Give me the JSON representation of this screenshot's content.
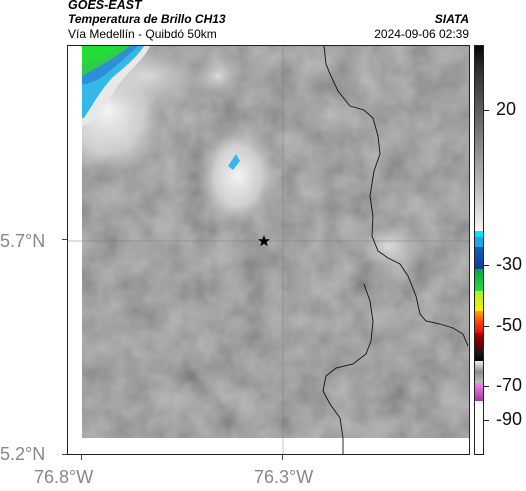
{
  "header": {
    "satellite": "GOES-EAST",
    "product": "Temperatura de Brillo CH13",
    "region": "Vía Medellín - Quibdó 50km",
    "organization": "SIATA",
    "datetime": "2024-09-06 02:39"
  },
  "axes": {
    "lat_ticks": [
      {
        "label": "5.7°N",
        "value": 5.7
      },
      {
        "label": "5.2°N",
        "value": 5.2
      }
    ],
    "lon_ticks": [
      {
        "label": "76.8°W",
        "value": -76.8
      },
      {
        "label": "76.3°W",
        "value": -76.3
      }
    ]
  },
  "map": {
    "marker": "star-marker"
  },
  "colorbar": {
    "labels": [
      "20",
      "-30",
      "-50",
      "-70",
      "-90"
    ],
    "range": [
      -95,
      45
    ]
  }
}
